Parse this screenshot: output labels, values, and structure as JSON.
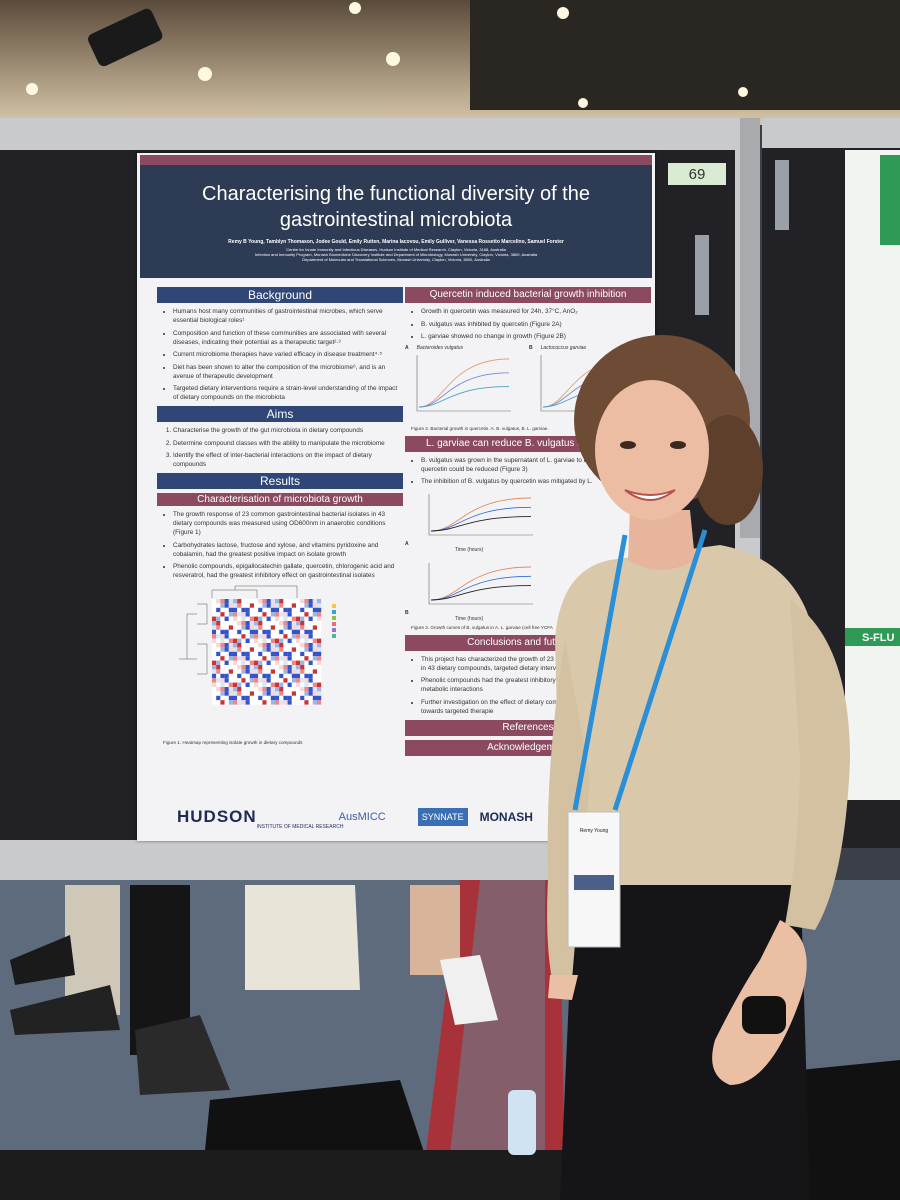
{
  "board_number": "69",
  "side_poster_heading": "S-FLU",
  "badge_name": "Remy Young",
  "poster": {
    "title": "Characterising the functional diversity of the gastrointestinal microbiota",
    "authors": "Remy B Young, Tamblyn Thomason, Jodee Gould, Emily Rutten, Marina Iacovou, Emily Gulliver, Vanessa Rossetto Marcelino, Samuel Forster",
    "affiliations": [
      "Centre for Innate Immunity and Infectious Diseases, Hudson Institute of Medical Research, Clayton, Victoria, 3168, Australia",
      "Infection and Immunity Program, Monash Biomedicine Discovery Institute and Department of Microbiology, Monash University, Clayton, Victoria, 3800, Australia",
      "Department of Molecular and Translational Sciences, Monash University, Clayton, Victoria, 3800, Australia"
    ],
    "left_column": [
      {
        "heading": "Background",
        "bullets": [
          "Humans host many communities of gastrointestinal microbes, which serve essential biological roles¹",
          "Composition and function of these communities are associated with several diseases, indicating their potential as a therapeutic target²·³",
          "Current microbiome therapies have varied efficacy in disease treatment⁴·⁵",
          "Diet has been shown to alter the composition of the microbiome⁶, and is an avenue of therapeutic development",
          "Targeted dietary interventions require a strain-level understanding of the impact of dietary compounds on the microbiota"
        ]
      },
      {
        "heading": "Aims",
        "numbered": [
          "Characterise the growth of the gut microbiota in dietary compounds",
          "Determine compound classes with the ability to manipulate the microbiome",
          "Identify the effect of inter-bacterial interactions on the impact of dietary compounds"
        ]
      },
      {
        "heading": "Results",
        "subheading": "Characterisation of microbiota growth",
        "bullets": [
          "The growth response of 23 common gastrointestinal bacterial isolates in 43 dietary compounds was measured using OD600nm in anaerobic conditions (Figure 1)",
          "Carbohydrates lactose, fructose and xylose, and vitamins pyridoxine and cobalamin, had the greatest positive impact on isolate growth",
          "Phenolic compounds, epigallocatechin gallate, quercetin, chlorogenic acid and resveratrol, had the greatest inhibitory effect on gastrointestinal isolates"
        ],
        "caption": "Figure 1. Heatmap representing isolate growth in dietary compounds"
      }
    ],
    "right_column": [
      {
        "heading": "Quercetin induced bacterial growth inhibition",
        "bullets": [
          "Growth in quercetin was measured for 24h, 37°C, AnO₂",
          "B. vulgatus was inhibited by quercetin (Figure 2A)",
          "L. garviae showed no change in growth (Figure 2B)"
        ],
        "panels": [
          {
            "letter": "A",
            "organism": "Bacteroides vulgatus"
          },
          {
            "letter": "B",
            "organism": "Lactococcus garviae"
          }
        ],
        "caption": "Figure 2. Bacterial growth in quercetin. A. B. vulgatus, B. L. garviae."
      },
      {
        "heading": "L. garviae can reduce B. vulgatus inhibition by",
        "bullets": [
          "B. vulgatus was grown in the supernatant of L. garviae to de the effect of quercetin could be reduced (Figure 3)",
          "The inhibition of B. vulgatus by quercetin was mitigated by L."
        ],
        "panels": [
          {
            "letter": "A",
            "organism": "Time (hours)"
          },
          {
            "letter": "B",
            "organism": "Time (hours)"
          }
        ],
        "caption": "Figure 3. Growth curves of B. vulgatus in A. L. garviae (cell free YCFA"
      },
      {
        "heading": "Conclusions and future dire",
        "bullets": [
          "This project has characterized the growth of 23 gastro with strain-level variations in 43 dietary compounds, targeted dietary interventions for microbiome therapie",
          "Phenolic compounds had the greatest inhibitory effe mitigated through bacterial metabolic interactions",
          "Further investigation on the effect of dietary compou level is required to move towards targeted therapie"
        ]
      },
      {
        "heading": "References"
      },
      {
        "heading": "Acknowledgement"
      }
    ],
    "logos": [
      "HUDSON",
      "INSTITUTE OF MEDICAL RESEARCH",
      "AusMICC",
      "SYNNATE",
      "MONASH"
    ]
  }
}
